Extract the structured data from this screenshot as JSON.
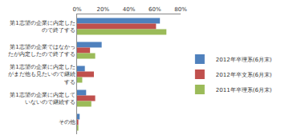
{
  "chart_data": {
    "type": "bar",
    "orientation": "horizontal",
    "categories": [
      "第1志望の企業に内定したので終了する",
      "第1志望の企業ではなかったが内定したので終了する",
      "第1志望の企業に内定したがまだ他も見たいので継続する",
      "第1志望の企業に内定していないので継続する",
      "その他"
    ],
    "series": [
      {
        "name": "2012年卒理系(6月末)",
        "color": "#4f81bd",
        "values": [
          64,
          19,
          6,
          7,
          2
        ]
      },
      {
        "name": "2012年卒文系(6月末)",
        "color": "#c0504d",
        "values": [
          61,
          10,
          13,
          14,
          1
        ]
      },
      {
        "name": "2011年卒理系(6月末)",
        "color": "#9bbb59",
        "values": [
          69,
          14,
          4,
          11,
          1
        ]
      }
    ],
    "xlim": [
      0,
      80
    ],
    "xticks": [
      {
        "value": 0,
        "label": "0%"
      },
      {
        "value": 20,
        "label": "20%"
      },
      {
        "value": 40,
        "label": "40%"
      },
      {
        "value": 60,
        "label": "60%"
      },
      {
        "value": 80,
        "label": "80%"
      }
    ],
    "grid": false,
    "legend": "right"
  }
}
